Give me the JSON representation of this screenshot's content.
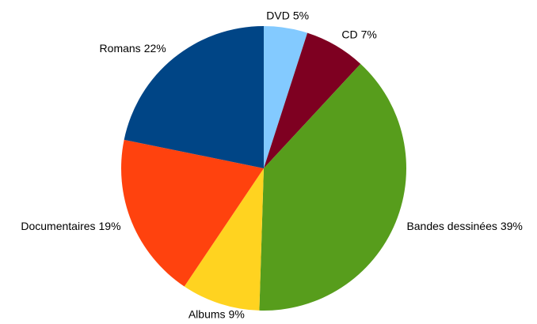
{
  "chart_data": {
    "type": "pie",
    "categories": [
      "DVD",
      "CD",
      "Bandes dessinées",
      "Albums",
      "Documentaires",
      "Romans"
    ],
    "values": [
      5,
      7,
      39,
      9,
      19,
      22
    ],
    "value_labels": [
      "5%",
      "7%",
      "39%",
      "9%",
      "19%",
      "22%"
    ],
    "colors": [
      "#83caff",
      "#7e0021",
      "#579d1c",
      "#ffd320",
      "#ff420e",
      "#004586"
    ]
  }
}
